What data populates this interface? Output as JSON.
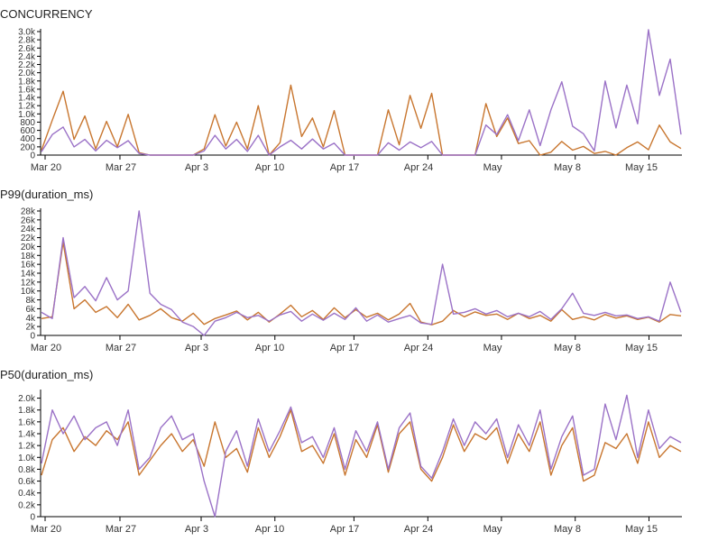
{
  "chart_data": [
    {
      "type": "line",
      "title": "CONCURRENCY",
      "xlabel": "",
      "ylabel": "",
      "ylim": [
        0,
        3000
      ],
      "yticks": [
        0,
        200,
        400,
        600,
        800,
        1000,
        1200,
        1400,
        1600,
        1800,
        2000,
        2200,
        2400,
        2600,
        2800,
        3000
      ],
      "ytick_labels": [
        "0",
        "200",
        "400",
        "600",
        "800",
        "1.0k",
        "1.2k",
        "1.4k",
        "1.6k",
        "1.8k",
        "2.0k",
        "2.2k",
        "2.4k",
        "2.6k",
        "2.8k",
        "3.0k"
      ],
      "x_points": 60,
      "series": [
        {
          "name": "series-orange",
          "color": "#c8762f",
          "values": [
            120,
            850,
            1550,
            380,
            950,
            150,
            820,
            200,
            990,
            60,
            0,
            0,
            0,
            0,
            0,
            150,
            980,
            220,
            800,
            150,
            1200,
            0,
            300,
            1700,
            450,
            900,
            200,
            1080,
            0,
            0,
            0,
            0,
            1100,
            250,
            1450,
            650,
            1500,
            0,
            0,
            0,
            0,
            1250,
            450,
            900,
            280,
            350,
            0,
            70,
            330,
            120,
            210,
            40,
            90,
            0,
            180,
            320,
            130,
            730,
            320,
            160
          ]
        },
        {
          "name": "series-purple",
          "color": "#9b72c7",
          "values": [
            80,
            500,
            680,
            200,
            380,
            100,
            360,
            180,
            350,
            40,
            0,
            0,
            0,
            0,
            0,
            100,
            480,
            150,
            380,
            90,
            480,
            0,
            200,
            360,
            150,
            390,
            150,
            290,
            0,
            0,
            0,
            0,
            300,
            120,
            320,
            180,
            330,
            0,
            0,
            0,
            0,
            730,
            500,
            980,
            350,
            1100,
            230,
            1100,
            1780,
            700,
            520,
            100,
            1800,
            660,
            1700,
            760,
            3100,
            1450,
            2330,
            500
          ]
        }
      ],
      "x_ticks": [
        "Mar 20",
        "Mar 27",
        "Apr 3",
        "Apr 10",
        "Apr 17",
        "Apr 24",
        "May",
        "May 8",
        "May 15"
      ]
    },
    {
      "type": "line",
      "title": "P99(duration_ms)",
      "xlabel": "",
      "ylabel": "",
      "ylim": [
        0,
        28000
      ],
      "yticks": [
        0,
        2000,
        4000,
        6000,
        8000,
        10000,
        12000,
        14000,
        16000,
        18000,
        20000,
        22000,
        24000,
        26000,
        28000
      ],
      "ytick_labels": [
        "0",
        "2k",
        "4k",
        "6k",
        "8k",
        "10k",
        "12k",
        "14k",
        "16k",
        "18k",
        "20k",
        "22k",
        "24k",
        "26k",
        "28k"
      ],
      "x_points": 60,
      "series": [
        {
          "name": "series-orange",
          "color": "#c8762f",
          "values": [
            3800,
            4200,
            21000,
            6000,
            8000,
            5200,
            6500,
            4000,
            7000,
            3500,
            4500,
            6000,
            4000,
            3200,
            5000,
            2500,
            3800,
            4600,
            5500,
            3500,
            5200,
            3000,
            4800,
            6800,
            4200,
            5600,
            3600,
            6200,
            4000,
            5800,
            4100,
            5000,
            3500,
            4800,
            7200,
            3000,
            2400,
            3200,
            5600,
            4200,
            5300,
            4500,
            4800,
            3600,
            5000,
            3800,
            4500,
            3200,
            5800,
            3600,
            4200,
            3500,
            4700,
            3900,
            4400,
            3600,
            4100,
            3000,
            4700,
            4400
          ]
        },
        {
          "name": "series-purple",
          "color": "#9b72c7",
          "values": [
            5200,
            3800,
            22000,
            8500,
            11000,
            7800,
            13000,
            8000,
            10000,
            28000,
            9500,
            7000,
            5800,
            3000,
            2000,
            0,
            3200,
            4000,
            5200,
            4000,
            4500,
            3200,
            4600,
            5400,
            3200,
            4800,
            3400,
            5000,
            3600,
            6200,
            3200,
            4600,
            3000,
            3800,
            4500,
            2800,
            2500,
            16000,
            4800,
            5200,
            6000,
            4800,
            5600,
            4200,
            5000,
            4200,
            5400,
            3600,
            6000,
            9500,
            5000,
            4500,
            5200,
            4400,
            4600,
            3800,
            4200,
            3200,
            12000,
            5200
          ]
        }
      ],
      "x_ticks": [
        "Mar 20",
        "Mar 27",
        "Apr 3",
        "Apr 10",
        "Apr 17",
        "Apr 24",
        "May",
        "May 8",
        "May 15"
      ]
    },
    {
      "type": "line",
      "title": "P50(duration_ms)",
      "xlabel": "",
      "ylabel": "",
      "ylim": [
        0,
        2100
      ],
      "yticks": [
        0,
        200,
        400,
        600,
        800,
        1000,
        1200,
        1400,
        1600,
        1800,
        2000
      ],
      "ytick_labels": [
        "0",
        "0.2k",
        "0.4k",
        "0.6k",
        "0.8k",
        "1.0k",
        "1.2k",
        "1.4k",
        "1.6k",
        "1.8k",
        "2.0k"
      ],
      "x_points": 60,
      "series": [
        {
          "name": "series-orange",
          "color": "#c8762f",
          "values": [
            700,
            1300,
            1500,
            1100,
            1350,
            1200,
            1450,
            1300,
            1600,
            700,
            950,
            1200,
            1400,
            1100,
            1300,
            850,
            1600,
            1000,
            1150,
            750,
            1500,
            1000,
            1350,
            1800,
            1100,
            1200,
            900,
            1400,
            700,
            1300,
            1000,
            1550,
            750,
            1400,
            1600,
            800,
            600,
            1000,
            1550,
            1100,
            1400,
            1300,
            1500,
            900,
            1400,
            1100,
            1600,
            700,
            1200,
            1500,
            600,
            700,
            1250,
            1150,
            1400,
            900,
            1600,
            1000,
            1200,
            1100
          ]
        },
        {
          "name": "series-purple",
          "color": "#9b72c7",
          "values": [
            900,
            1800,
            1400,
            1700,
            1300,
            1500,
            1600,
            1200,
            1800,
            800,
            1000,
            1500,
            1700,
            1300,
            1400,
            600,
            0,
            1100,
            1450,
            850,
            1650,
            1100,
            1450,
            1850,
            1250,
            1350,
            1000,
            1500,
            800,
            1450,
            1100,
            1600,
            800,
            1500,
            1750,
            850,
            650,
            1100,
            1650,
            1200,
            1600,
            1400,
            1650,
            1000,
            1550,
            1200,
            1800,
            800,
            1350,
            1700,
            700,
            800,
            1900,
            1300,
            2050,
            1000,
            1800,
            1150,
            1350,
            1250
          ]
        }
      ],
      "x_ticks": [
        "Mar 20",
        "Mar 27",
        "Apr 3",
        "Apr 10",
        "Apr 17",
        "Apr 24",
        "May",
        "May 8",
        "May 15"
      ]
    }
  ]
}
